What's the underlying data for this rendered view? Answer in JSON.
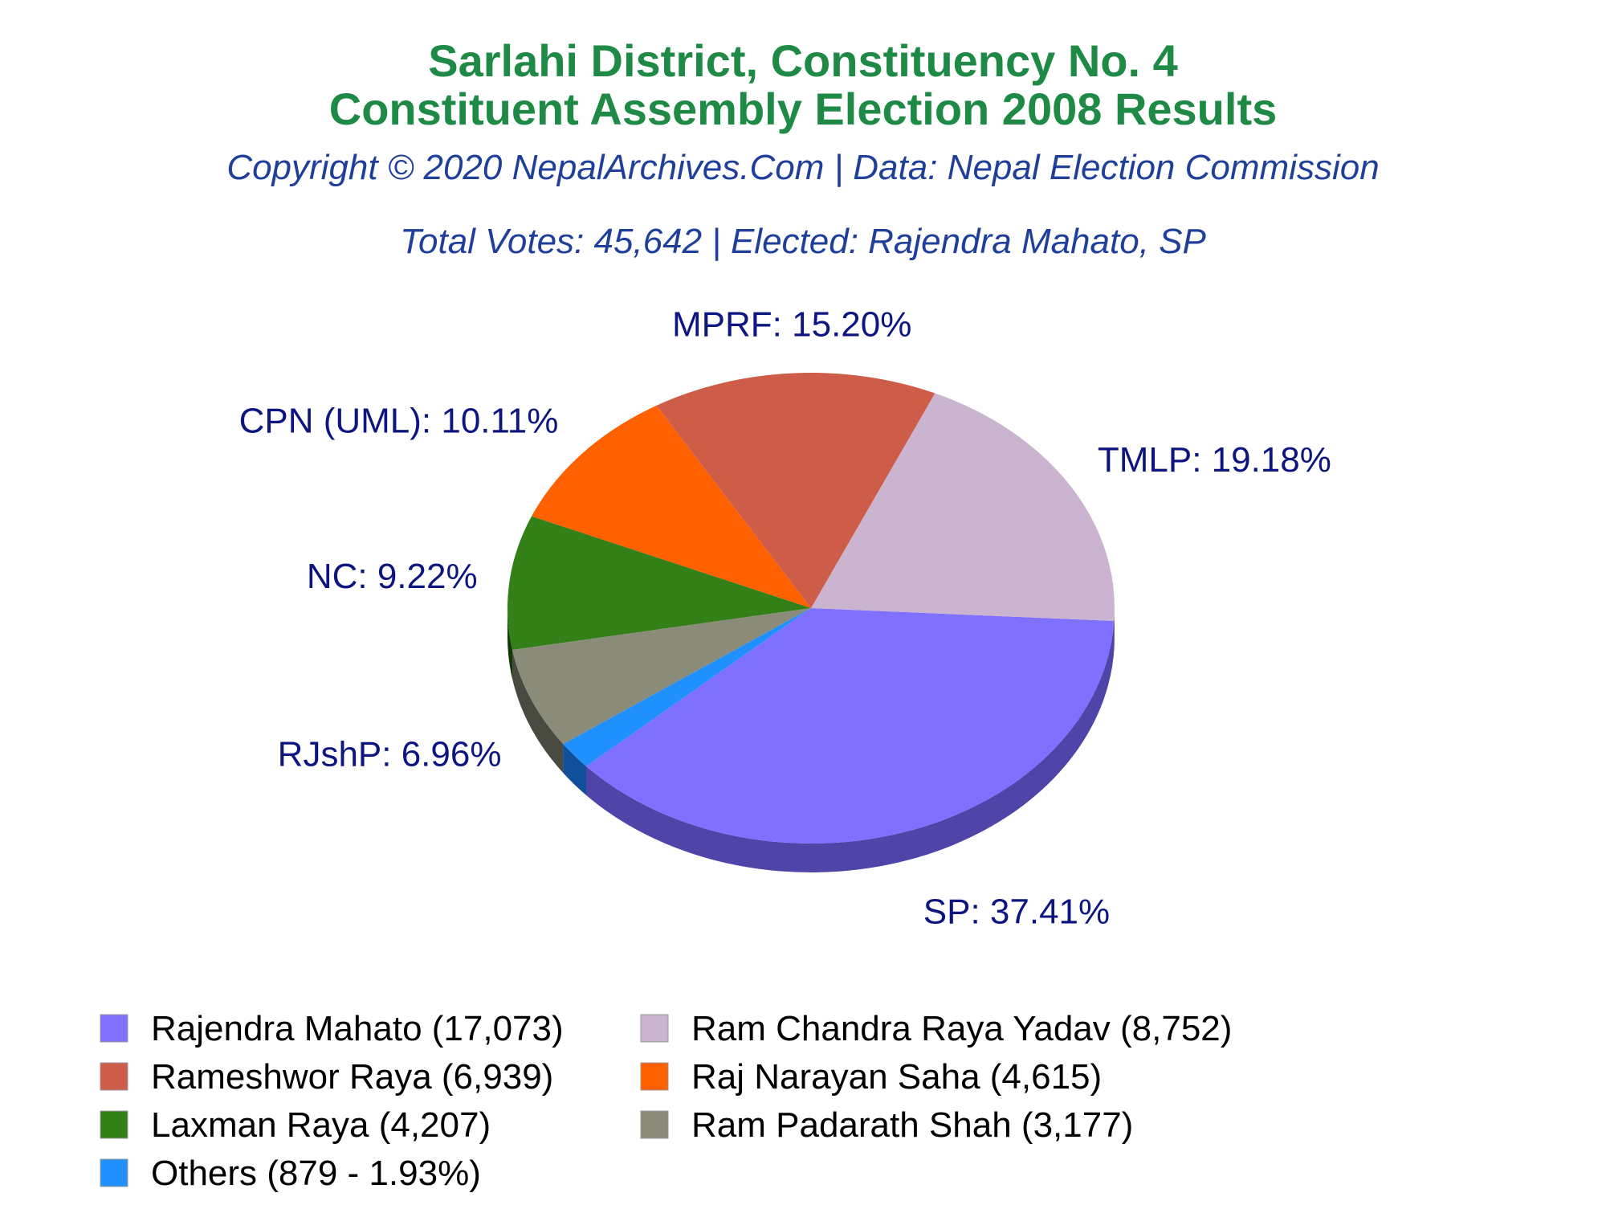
{
  "chart_data": {
    "type": "pie",
    "title_line1": "Sarlahi District, Constituency No. 4",
    "title_line2": "Constituent Assembly Election 2008 Results",
    "copyright": "Copyright © 2020 NepalArchives.Com | Data: Nepal Election Commission",
    "summary": "Total Votes: 45,642 | Elected: Rajendra Mahato, SP",
    "total_votes": 45642,
    "slices": [
      {
        "party_label": "SP: 37.41%",
        "candidate_label": "Rajendra Mahato (17,073)",
        "votes": 17073,
        "percent": 37.41,
        "color": "#8070ff",
        "side": "#4f44a8"
      },
      {
        "party_label": "TMLP: 19.18%",
        "candidate_label": "Ram Chandra Raya Yadav (8,752)",
        "votes": 8752,
        "percent": 19.18,
        "color": "#cbb4cf",
        "side": "#7a6580"
      },
      {
        "party_label": "MPRF: 15.20%",
        "candidate_label": "Rameshwor Raya (6,939)",
        "votes": 6939,
        "percent": 15.2,
        "color": "#cd5c48",
        "side": "#7a0000"
      },
      {
        "party_label": "CPN (UML): 10.11%",
        "candidate_label": "Raj Narayan Saha (4,615)",
        "votes": 4615,
        "percent": 10.11,
        "color": "#ff6000",
        "side": "#a00000"
      },
      {
        "party_label": "NC: 9.22%",
        "candidate_label": "Laxman Raya (4,207)",
        "votes": 4207,
        "percent": 9.22,
        "color": "#338019",
        "side": "#0f3a05"
      },
      {
        "party_label": "RJshP: 6.96%",
        "candidate_label": "Ram Padarath Shah (3,177)",
        "votes": 3177,
        "percent": 6.96,
        "color": "#8a8b78",
        "side": "#4a4b40"
      },
      {
        "party_label": "",
        "candidate_label": "Others (879 - 1.93%)",
        "votes": 879,
        "percent": 1.93,
        "color": "#2090ff",
        "side": "#10509a"
      }
    ]
  }
}
